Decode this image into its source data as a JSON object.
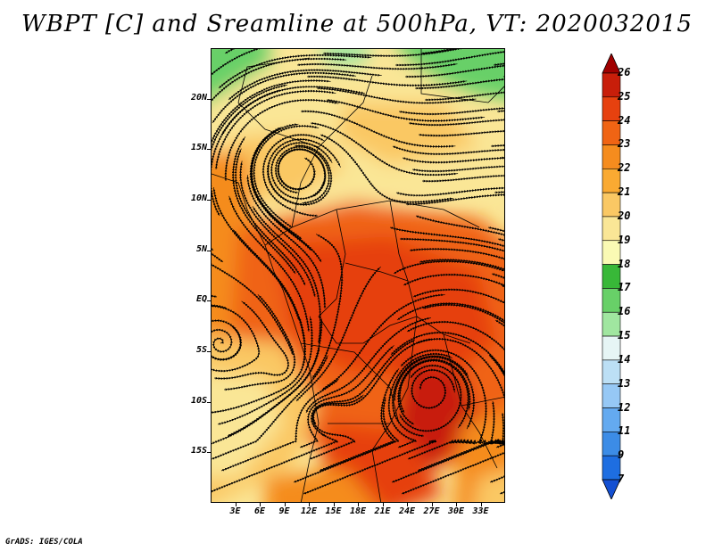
{
  "title": "WBPT [C] and Sreamline at 500hPa, VT: 2020032015",
  "footer": "GrADS: IGES/COLA",
  "map": {
    "lon_range": [
      0,
      36
    ],
    "lat_range": [
      -20,
      25
    ],
    "lat_ticks": [
      {
        "value": 20,
        "label": "20N"
      },
      {
        "value": 15,
        "label": "15N"
      },
      {
        "value": 10,
        "label": "10N"
      },
      {
        "value": 5,
        "label": "5N"
      },
      {
        "value": 0,
        "label": "EQ"
      },
      {
        "value": -5,
        "label": "5S"
      },
      {
        "value": -10,
        "label": "10S"
      },
      {
        "value": -15,
        "label": "15S"
      }
    ],
    "lon_ticks": [
      {
        "value": 3,
        "label": "3E"
      },
      {
        "value": 6,
        "label": "6E"
      },
      {
        "value": 9,
        "label": "9E"
      },
      {
        "value": 12,
        "label": "12E"
      },
      {
        "value": 15,
        "label": "15E"
      },
      {
        "value": 18,
        "label": "18E"
      },
      {
        "value": 21,
        "label": "21E"
      },
      {
        "value": 24,
        "label": "24E"
      },
      {
        "value": 27,
        "label": "27E"
      },
      {
        "value": 30,
        "label": "30E"
      },
      {
        "value": 33,
        "label": "33E"
      }
    ]
  },
  "colorbar": {
    "levels": [
      "26",
      "25",
      "24",
      "23",
      "22",
      "21",
      "20",
      "19",
      "18",
      "17",
      "16",
      "15",
      "14",
      "13",
      "12",
      "11",
      "9",
      "7"
    ],
    "colors": [
      "#a00000",
      "#c81e0a",
      "#e6410f",
      "#f06414",
      "#f58c1e",
      "#faaa32",
      "#fac864",
      "#fae696",
      "#fafab4",
      "#38b838",
      "#68d068",
      "#a0e6a0",
      "#e6f5f5",
      "#bcdff5",
      "#96c8f5",
      "#64aaf0",
      "#3c8ce6",
      "#1e6ee1",
      "#1450d2"
    ]
  }
}
